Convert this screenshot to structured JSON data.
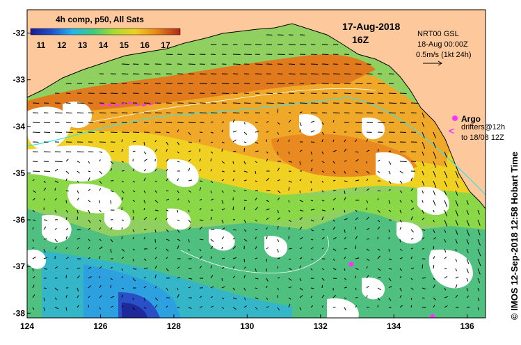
{
  "map": {
    "header_label": "4h comp, p50, All Sats",
    "date": "17-Aug-2018",
    "hour": "16Z",
    "info_lines": [
      "NRT00 GSL",
      "18-Aug 00:00Z",
      "0.5m/s (1kt 24h)"
    ],
    "argo_label": "Argo",
    "drifters_line1": "drifters@12h",
    "drifters_line2": "to 18/08 12Z",
    "credit": "© IMOS 12-Sep-2018 12:58 Hobart Time",
    "colorbar": {
      "ticks": [
        "11",
        "12",
        "13",
        "14",
        "15",
        "16",
        "17"
      ],
      "min": 10.5,
      "max": 17.7
    },
    "longitude_ticks": [
      "124",
      "126",
      "128",
      "130",
      "132",
      "134",
      "136"
    ],
    "latitude_ticks": [
      "-32",
      "-33",
      "-34",
      "-35",
      "-36",
      "-37",
      "-38"
    ],
    "lon_range": [
      124,
      136.5
    ],
    "lat_range": [
      -31.5,
      -38.1
    ],
    "colors": {
      "land": "#fdc99c",
      "argo": "#ff33ff",
      "coast": "#000000"
    }
  }
}
